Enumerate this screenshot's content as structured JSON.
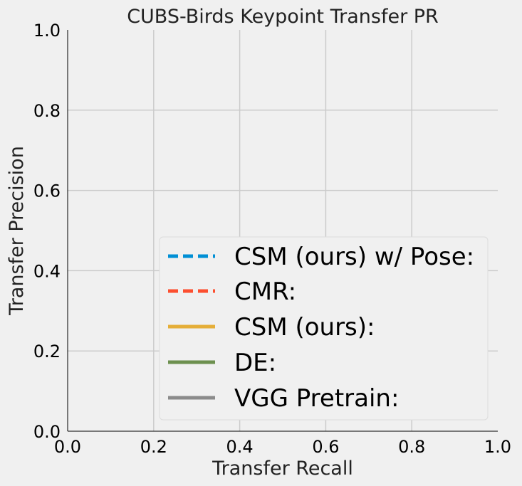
{
  "chart_data": {
    "type": "line",
    "title": "CUBS-Birds Keypoint Transfer PR",
    "xlabel": "Transfer Recall",
    "ylabel": "Transfer Precision",
    "xlim": [
      0.0,
      1.0
    ],
    "ylim": [
      0.0,
      1.0
    ],
    "xticks": [
      "0.0",
      "0.2",
      "0.4",
      "0.6",
      "0.8",
      "1.0"
    ],
    "yticks": [
      "0.0",
      "0.2",
      "0.4",
      "0.6",
      "0.8",
      "1.0"
    ],
    "grid": true,
    "legend_position": "lower-right",
    "series": [
      {
        "name": "CSM (ours) w/ Pose:",
        "color": "#008fd5",
        "dash": "dashed",
        "x": [],
        "y": []
      },
      {
        "name": "CMR:",
        "color": "#fc4f30",
        "dash": "dashed",
        "x": [],
        "y": []
      },
      {
        "name": "CSM (ours):",
        "color": "#e5ae38",
        "dash": "solid",
        "x": [],
        "y": []
      },
      {
        "name": "DE:",
        "color": "#6d904f",
        "dash": "solid",
        "x": [],
        "y": []
      },
      {
        "name": "VGG Pretrain:",
        "color": "#8b8b8b",
        "dash": "solid",
        "x": [],
        "y": []
      }
    ]
  }
}
